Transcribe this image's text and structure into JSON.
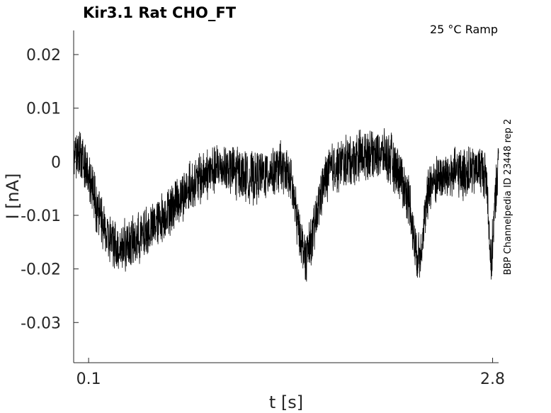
{
  "chart_data": {
    "type": "line",
    "title": "Kir3.1  Rat  CHO_FT",
    "annotation": "25 °C  Ramp",
    "side_label": "BBP Channelpedia ID 23448 rep 2",
    "xlabel": "t [s]",
    "ylabel": "I [nA]",
    "xlim": [
      0.0,
      2.84
    ],
    "ylim": [
      -0.0375,
      0.0245
    ],
    "x_ticks": [
      0.1,
      2.8
    ],
    "x_tick_labels": [
      "0.1",
      "2.8"
    ],
    "y_ticks": [
      0.02,
      0.01,
      0,
      -0.01,
      -0.02,
      -0.03
    ],
    "y_tick_labels": [
      "0.02",
      "0.01",
      "0",
      "-0.01",
      "-0.02",
      "-0.03"
    ],
    "grid": false,
    "legend": "none",
    "line_color": "#000000",
    "series": [
      {
        "x": [
          0.0,
          0.08,
          0.15,
          0.22,
          0.3,
          0.4,
          0.5,
          0.6,
          0.7,
          0.8,
          0.9,
          1.0,
          1.1,
          1.2,
          1.3,
          1.38,
          1.45,
          1.5,
          1.55,
          1.6,
          1.65,
          1.7,
          1.75,
          1.82,
          1.9,
          2.0,
          2.1,
          2.18,
          2.25,
          2.28,
          2.31,
          2.34,
          2.38,
          2.45,
          2.55,
          2.65,
          2.72,
          2.76,
          2.79,
          2.82,
          2.84
        ],
        "y": [
          0.002,
          0.0,
          -0.008,
          -0.014,
          -0.016,
          -0.015,
          -0.013,
          -0.01,
          -0.007,
          -0.004,
          -0.002,
          -0.001,
          -0.002,
          -0.003,
          -0.002,
          -0.001,
          -0.003,
          -0.012,
          -0.018,
          -0.014,
          -0.006,
          -0.002,
          -0.001,
          0.0,
          0.001,
          0.002,
          0.001,
          -0.002,
          -0.008,
          -0.016,
          -0.018,
          -0.012,
          -0.004,
          -0.003,
          -0.002,
          -0.002,
          -0.001,
          -0.003,
          -0.02,
          -0.006,
          0.0
        ],
        "noise_amplitude": 0.0055
      }
    ]
  }
}
